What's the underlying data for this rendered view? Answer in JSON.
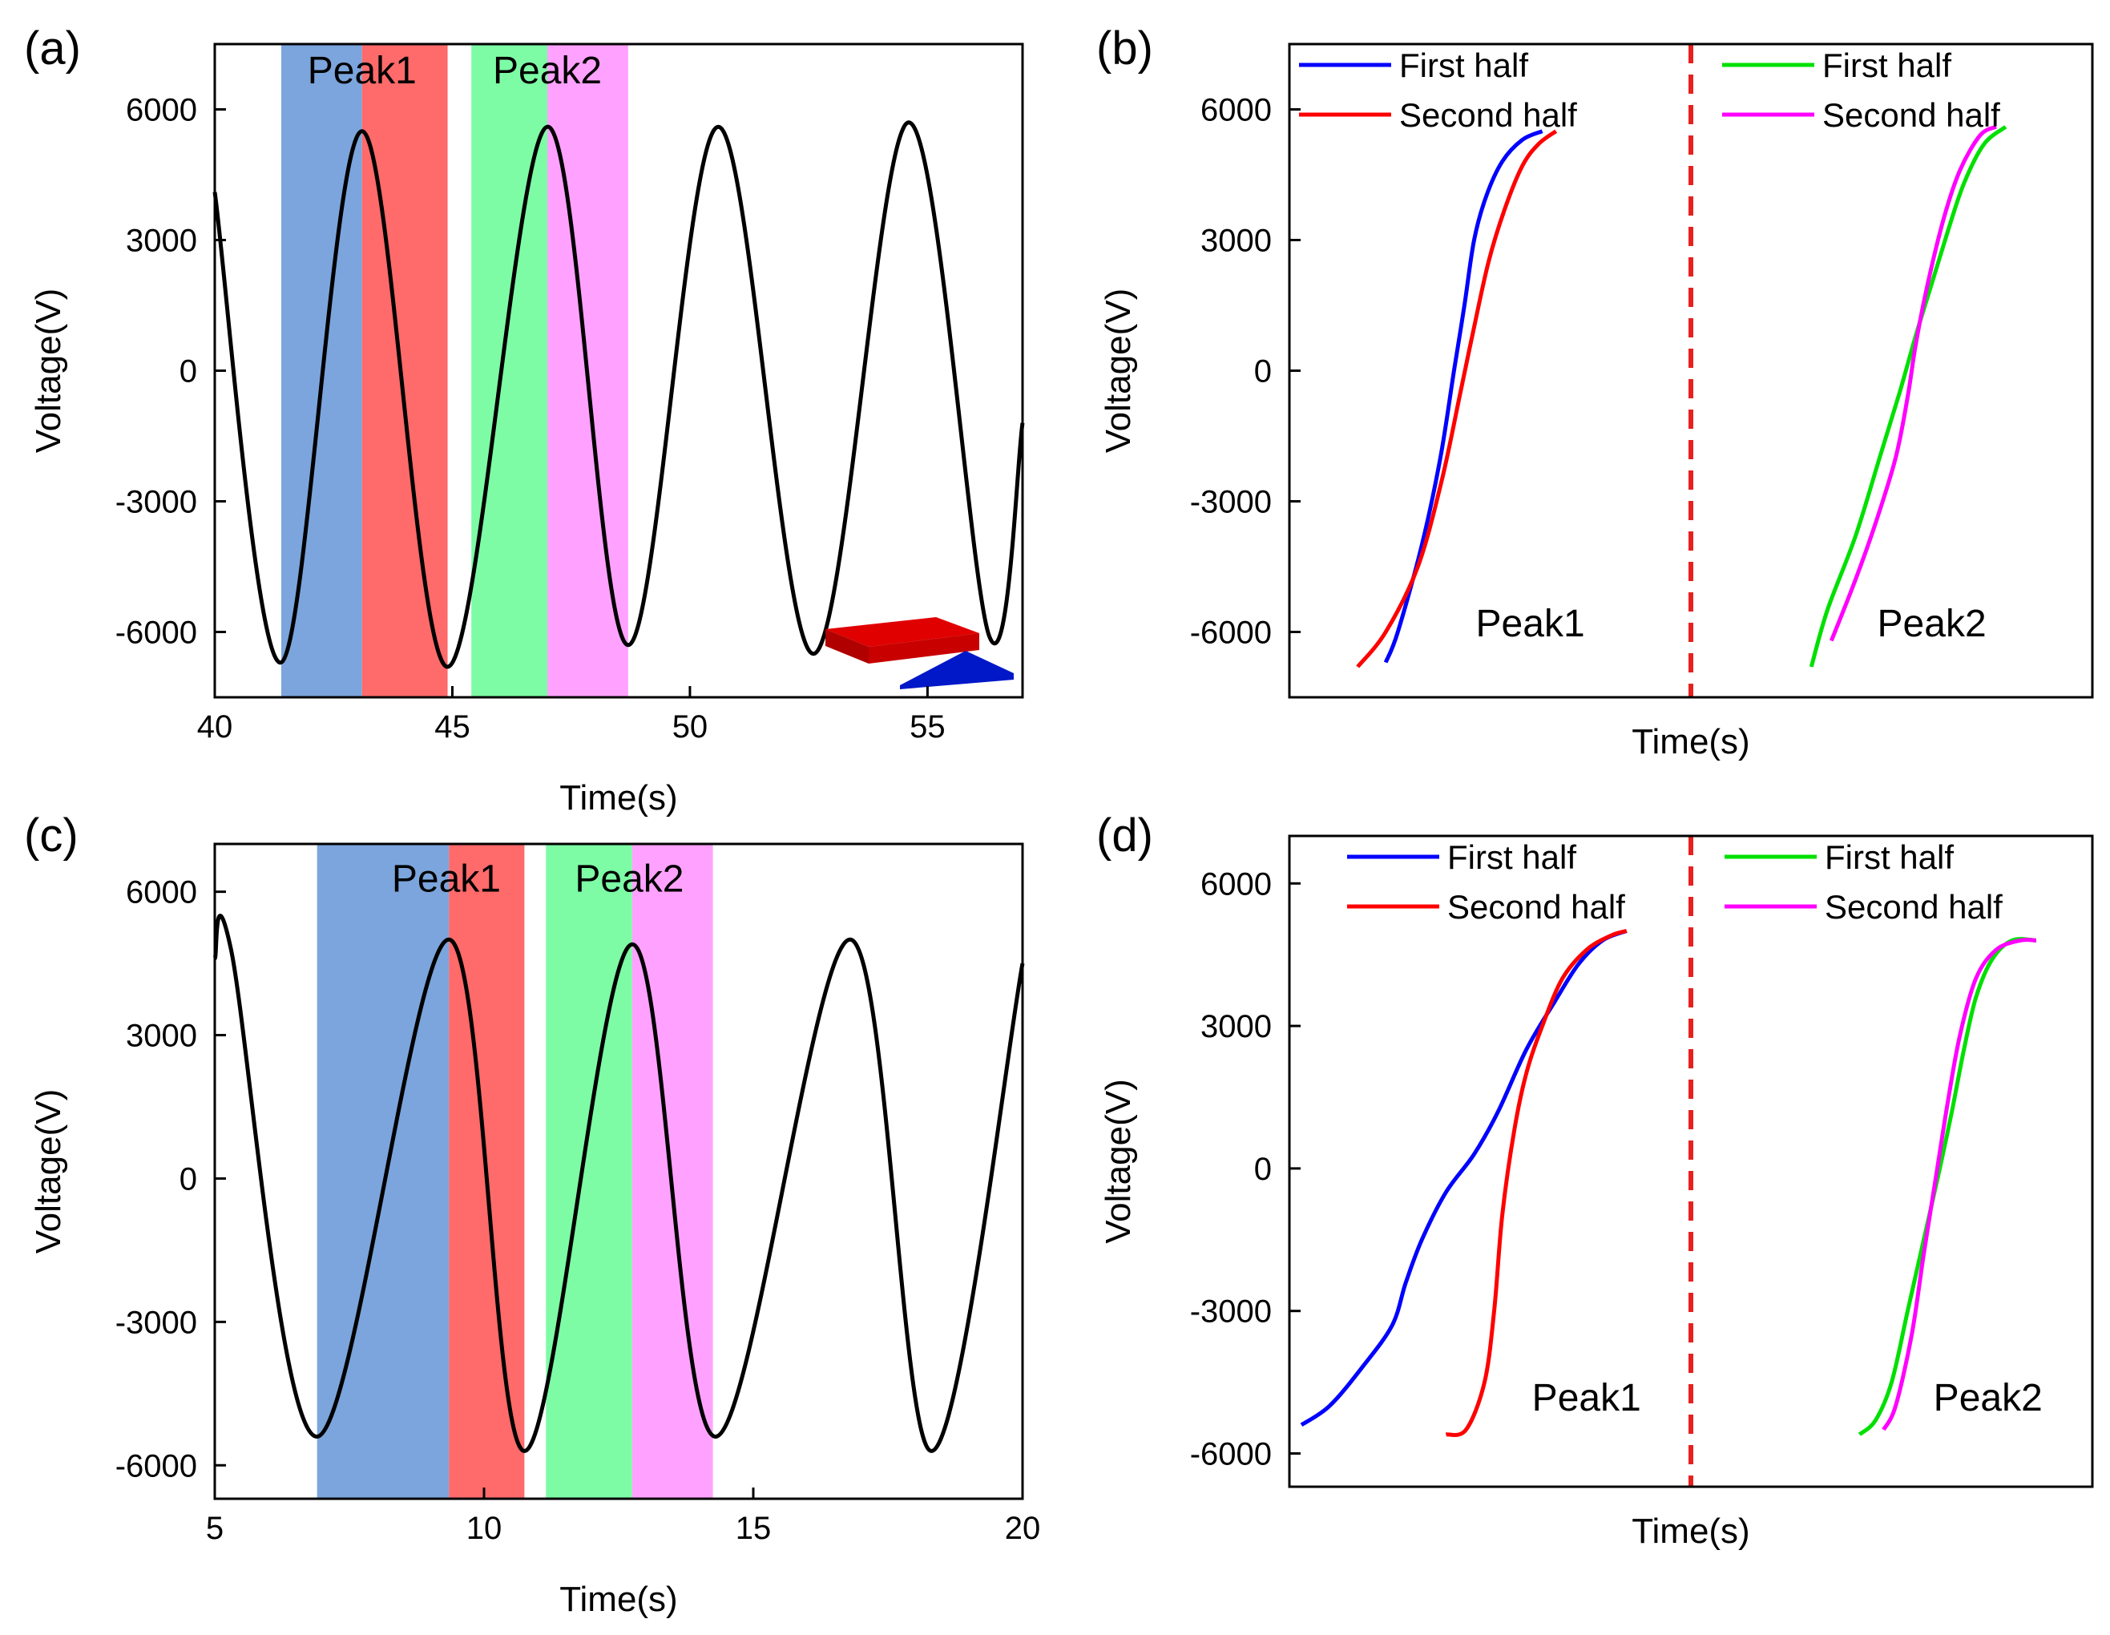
{
  "chart_data": [
    {
      "panel": "(a)",
      "type": "line",
      "xlabel": "Time(s)",
      "ylabel": "Voltage(V)",
      "xlim": [
        40,
        57
      ],
      "ylim": [
        -7500,
        7500
      ],
      "xticks": [
        40,
        45,
        50,
        55
      ],
      "yticks": [
        -6000,
        -3000,
        0,
        3000,
        6000
      ],
      "series": [
        {
          "name": "Voltage",
          "color": "#000000",
          "x": [
            40.0,
            41.4,
            43.1,
            44.9,
            47.0,
            48.7,
            50.6,
            52.6,
            54.6,
            56.3,
            57.0
          ],
          "y": [
            4100,
            -6700,
            5500,
            -6800,
            5600,
            -6300,
            5600,
            -6500,
            5700,
            -6100,
            -1200
          ]
        }
      ],
      "regions": [
        {
          "x0": 41.4,
          "x1": 43.1,
          "color": "#7ba5dc"
        },
        {
          "x0": 43.1,
          "x1": 44.9,
          "color": "#ff6a6a"
        },
        {
          "x0": 45.4,
          "x1": 47.0,
          "color": "#7dfca5"
        },
        {
          "x0": 47.0,
          "x1": 48.7,
          "color": "#ffa2ff"
        }
      ],
      "annotations": [
        {
          "text": "Peak1",
          "x": 43.1,
          "y": 6600
        },
        {
          "text": "Peak2",
          "x": 47.0,
          "y": 6600
        }
      ],
      "inset_colors": [
        "#e00000",
        "#0018c8"
      ]
    },
    {
      "panel": "(b)",
      "type": "line",
      "xlabel": "Time(s)",
      "ylabel": "Voltage(V)",
      "ylim": [
        -7500,
        7500
      ],
      "xlim": [
        0,
        100
      ],
      "yticks": [
        -6000,
        -3000,
        0,
        3000,
        6000
      ],
      "divider_x": 50,
      "series": [
        {
          "name": "First half",
          "color": "#0000ff",
          "x": [
            12.0,
            13.5,
            16.5,
            18.8,
            20.5,
            21.8,
            23.0,
            24.5,
            26.5,
            29.0,
            31.5
          ],
          "y": [
            -6700,
            -6000,
            -4000,
            -2000,
            0,
            1500,
            3000,
            4000,
            4800,
            5300,
            5500
          ]
        },
        {
          "name": "Second half",
          "color": "#ff0000",
          "x": [
            8.5,
            12.0,
            16.0,
            19.0,
            21.3,
            23.0,
            24.8,
            26.8,
            29.0,
            31.0,
            33.2
          ],
          "y": [
            -6800,
            -6000,
            -4500,
            -2500,
            -500,
            1000,
            2500,
            3700,
            4700,
            5200,
            5500
          ]
        },
        {
          "name": "First half",
          "color": "#00e000",
          "x": [
            65.0,
            67.0,
            70.5,
            73.5,
            76.0,
            78.0,
            80.0,
            82.0,
            84.0,
            86.5,
            89.2
          ],
          "y": [
            -6800,
            -5500,
            -3800,
            -2000,
            -500,
            800,
            2000,
            3200,
            4300,
            5200,
            5600
          ]
        },
        {
          "name": "Second half",
          "color": "#ff00ff",
          "x": [
            67.5,
            70.5,
            73.0,
            75.5,
            77.0,
            78.0,
            79.5,
            81.5,
            83.5,
            86.0,
            88.0
          ],
          "y": [
            -6200,
            -4800,
            -3500,
            -2000,
            -600,
            600,
            2000,
            3500,
            4600,
            5400,
            5600
          ]
        }
      ],
      "annotations": [
        {
          "text": "Peak1",
          "x": 30,
          "y": -6100
        },
        {
          "text": "Peak2",
          "x": 80,
          "y": -6100
        }
      ]
    },
    {
      "panel": "(c)",
      "type": "line",
      "xlabel": "Time(s)",
      "ylabel": "Voltage(V)",
      "xlim": [
        5,
        20
      ],
      "ylim": [
        -6700,
        7000
      ],
      "xticks": [
        5,
        10,
        15,
        20
      ],
      "yticks": [
        -6000,
        -3000,
        0,
        3000,
        6000
      ],
      "series": [
        {
          "name": "Voltage",
          "color": "#000000",
          "x": [
            5.0,
            5.3,
            6.9,
            9.35,
            10.75,
            12.75,
            14.3,
            16.8,
            18.3,
            20.0
          ],
          "y": [
            4600,
            4800,
            -5400,
            5000,
            -5700,
            4900,
            -5400,
            5000,
            -5700,
            4500
          ]
        }
      ],
      "regions": [
        {
          "x0": 6.9,
          "x1": 9.35,
          "color": "#7ba5dc"
        },
        {
          "x0": 9.35,
          "x1": 10.75,
          "color": "#ff6a6a"
        },
        {
          "x0": 11.15,
          "x1": 12.75,
          "color": "#7dfca5"
        },
        {
          "x0": 12.75,
          "x1": 14.25,
          "color": "#ffa2ff"
        }
      ],
      "annotations": [
        {
          "text": "Peak1",
          "x": 9.3,
          "y": 6000
        },
        {
          "text": "Peak2",
          "x": 12.7,
          "y": 6000
        }
      ]
    },
    {
      "panel": "(d)",
      "type": "line",
      "xlabel": "Time(s)",
      "ylabel": "Voltage(V)",
      "ylim": [
        -6700,
        7000
      ],
      "xlim": [
        0,
        100
      ],
      "yticks": [
        -6000,
        -3000,
        0,
        3000,
        6000
      ],
      "divider_x": 50,
      "series": [
        {
          "name": "First half",
          "color": "#0000ff",
          "x": [
            1.5,
            5.0,
            9.0,
            12.8,
            14.5,
            16.5,
            19.5,
            23.0,
            26.0,
            29.5,
            33.0,
            36.0,
            39.0,
            42.0
          ],
          "y": [
            -5400,
            -5000,
            -4200,
            -3300,
            -2400,
            -1500,
            -500,
            300,
            1200,
            2500,
            3500,
            4300,
            4800,
            5000
          ]
        },
        {
          "name": "Second half",
          "color": "#ff0000",
          "x": [
            19.5,
            22.0,
            24.3,
            25.5,
            26.5,
            28.0,
            29.5,
            31.5,
            34.0,
            37.0,
            40.0,
            42.0
          ],
          "y": [
            -5600,
            -5500,
            -4500,
            -3000,
            -1000,
            800,
            2000,
            3000,
            4000,
            4600,
            4900,
            5000
          ]
        },
        {
          "name": "First half",
          "color": "#00e000",
          "x": [
            71.0,
            73.0,
            75.0,
            77.0,
            79.0,
            81.0,
            82.5,
            84.0,
            85.5,
            87.5,
            90.0,
            93.0
          ],
          "y": [
            -5600,
            -5300,
            -4500,
            -3000,
            -1500,
            0,
            1200,
            2500,
            3600,
            4400,
            4800,
            4800
          ]
        },
        {
          "name": "Second half",
          "color": "#ff00ff",
          "x": [
            74.0,
            75.5,
            77.5,
            79.0,
            80.5,
            82.0,
            83.5,
            85.5,
            88.0,
            91.0,
            93.0
          ],
          "y": [
            -5500,
            -5000,
            -3500,
            -1800,
            -200,
            1400,
            2800,
            4000,
            4600,
            4800,
            4800
          ]
        }
      ],
      "annotations": [
        {
          "text": "Peak1",
          "x": 37,
          "y": -5100
        },
        {
          "text": "Peak2",
          "x": 87,
          "y": -5100
        }
      ]
    }
  ]
}
